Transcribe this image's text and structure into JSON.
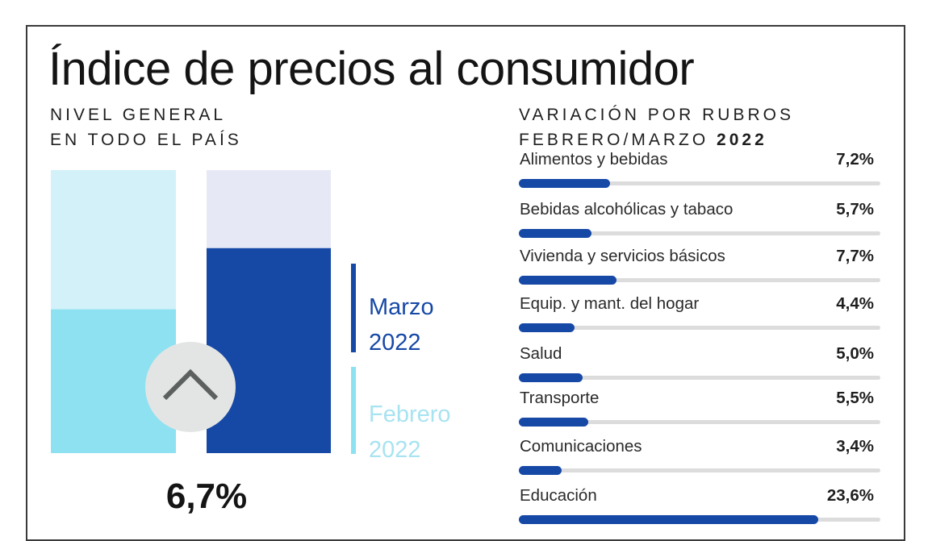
{
  "title": "Índice de precios al consumidor",
  "left_subhead": {
    "line1": "NIVEL GENERAL",
    "line2": "EN TODO EL PAÍS"
  },
  "right_subhead": {
    "line1": "VARIACIÓN POR RUBROS",
    "line2_prefix": "FEBRERO/MARZO",
    "line2_year": "2022"
  },
  "legend": {
    "marzo": {
      "month": "Marzo",
      "year": "2022"
    },
    "febrero": {
      "month": "Febrero",
      "year": "2022"
    }
  },
  "total": "6,7%",
  "colors": {
    "marzo": "#1648a6",
    "marzo_bg": "#e6e9f5",
    "febrero": "#8ee1f1",
    "febrero_bg": "#d2f1f9",
    "circle": "#e3e5e4",
    "chevron": "#5c605e"
  },
  "icons": {
    "trend": "chevron-up-icon"
  },
  "chart_data": [
    {
      "type": "bar",
      "categories": [
        "Febrero 2022",
        "Marzo 2022"
      ],
      "values": [
        4.7,
        6.7
      ],
      "ylim": [
        0,
        9.25
      ]
    },
    {
      "type": "bar",
      "orientation": "horizontal",
      "categories": [
        "Alimentos y bebidas",
        "Bebidas alcohólicas y tabaco",
        "Vivienda y servicios básicos",
        "Equip. y mant. del hogar",
        "Salud",
        "Transporte",
        "Comunicaciones",
        "Educación"
      ],
      "values": [
        7.2,
        5.7,
        7.7,
        4.4,
        5.0,
        5.5,
        3.4,
        23.6
      ],
      "labels": [
        "7,2%",
        "5,7%",
        "7,7%",
        "4,4%",
        "5,0%",
        "5,5%",
        "3,4%",
        "23,6%"
      ],
      "xlim": [
        0,
        28.5
      ]
    }
  ]
}
